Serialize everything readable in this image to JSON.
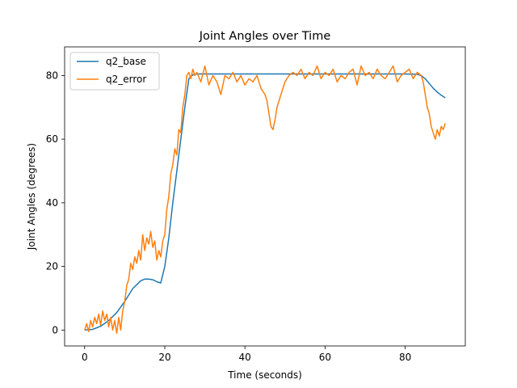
{
  "chart_data": {
    "type": "line",
    "title": "Joint Angles over Time",
    "xlabel": "Time (seconds)",
    "ylabel": "Joint Angles (degrees)",
    "xlim": [
      -5,
      95
    ],
    "ylim": [
      -5,
      89
    ],
    "xticks": [
      0,
      20,
      40,
      60,
      80
    ],
    "yticks": [
      0,
      20,
      40,
      60,
      80
    ],
    "grid": false,
    "legend_position": "top-left",
    "series": [
      {
        "name": "q2_base",
        "color": "#1f77b4",
        "x": [
          0,
          2,
          4,
          6,
          8,
          10,
          12,
          14,
          15,
          16,
          17,
          18,
          19,
          20,
          21,
          22,
          23,
          24,
          25,
          26,
          27,
          28,
          30,
          40,
          50,
          60,
          70,
          80,
          83,
          84,
          85,
          86,
          87,
          88,
          89,
          90
        ],
        "y": [
          0,
          0.2,
          1.2,
          3,
          5.5,
          9,
          13,
          15.5,
          16,
          16,
          15.8,
          15.2,
          14.8,
          20,
          29,
          40,
          50,
          60,
          70,
          79,
          80.2,
          80.5,
          80.5,
          80.5,
          80.5,
          80.5,
          80.5,
          80.5,
          80.4,
          80,
          79,
          77.5,
          76,
          74.8,
          73.8,
          73
        ]
      },
      {
        "name": "q2_error",
        "color": "#ff7f0e",
        "x": [
          0,
          0.5,
          1,
          1.5,
          2,
          2.5,
          3,
          3.5,
          4,
          4.5,
          5,
          5.5,
          6,
          6.5,
          7,
          7.5,
          8,
          8.5,
          9,
          9.5,
          10,
          10.5,
          11,
          11.5,
          12,
          12.5,
          13,
          13.5,
          14,
          14.5,
          15,
          15.5,
          16,
          16.5,
          17,
          17.5,
          18,
          18.5,
          19,
          19.5,
          20,
          20.5,
          21,
          21.5,
          22,
          22.5,
          23,
          23.5,
          24,
          24.5,
          25,
          25.5,
          26,
          26.5,
          27,
          27.5,
          28,
          29,
          30,
          31,
          32,
          33,
          34,
          35,
          36,
          37,
          38,
          39,
          40,
          41,
          42,
          43,
          44,
          45,
          45.5,
          46,
          46.5,
          47,
          47.5,
          48,
          49,
          50,
          51,
          52,
          53,
          54,
          55,
          56,
          57,
          58,
          59,
          60,
          61,
          62,
          63,
          64,
          65,
          66,
          67,
          68,
          69,
          70,
          71,
          72,
          73,
          74,
          75,
          76,
          77,
          78,
          79,
          80,
          81,
          82,
          83,
          84,
          84.5,
          85,
          85.5,
          86,
          86.5,
          87,
          87.5,
          88,
          88.5,
          89,
          89.5,
          90
        ],
        "y": [
          0,
          2,
          -0.5,
          3,
          1,
          4,
          2,
          5,
          1.5,
          6,
          3,
          5,
          1,
          4,
          0,
          3,
          -1,
          4,
          0,
          6,
          9,
          14,
          16,
          21,
          19,
          23,
          21,
          25,
          22,
          30,
          25,
          29,
          27,
          31,
          26,
          28,
          22,
          25,
          23,
          28,
          30,
          38,
          42,
          49,
          52,
          57,
          55,
          63,
          62,
          70,
          74,
          80,
          81,
          79,
          82,
          80,
          81,
          78,
          83,
          77,
          80,
          78,
          74,
          80,
          79,
          81,
          78,
          80,
          77,
          79,
          78,
          80,
          76,
          74,
          72,
          68,
          64,
          63,
          66,
          70,
          74,
          78,
          80,
          81,
          80,
          82,
          79,
          81,
          80,
          83,
          79,
          81,
          80,
          82,
          78,
          80,
          79,
          81,
          82,
          77,
          83,
          80,
          81,
          79,
          82,
          80,
          79,
          81,
          83,
          78,
          80,
          81,
          82,
          79,
          81,
          80,
          78,
          74,
          70,
          68,
          64,
          62,
          60,
          63,
          61,
          64,
          63,
          65
        ]
      }
    ]
  }
}
